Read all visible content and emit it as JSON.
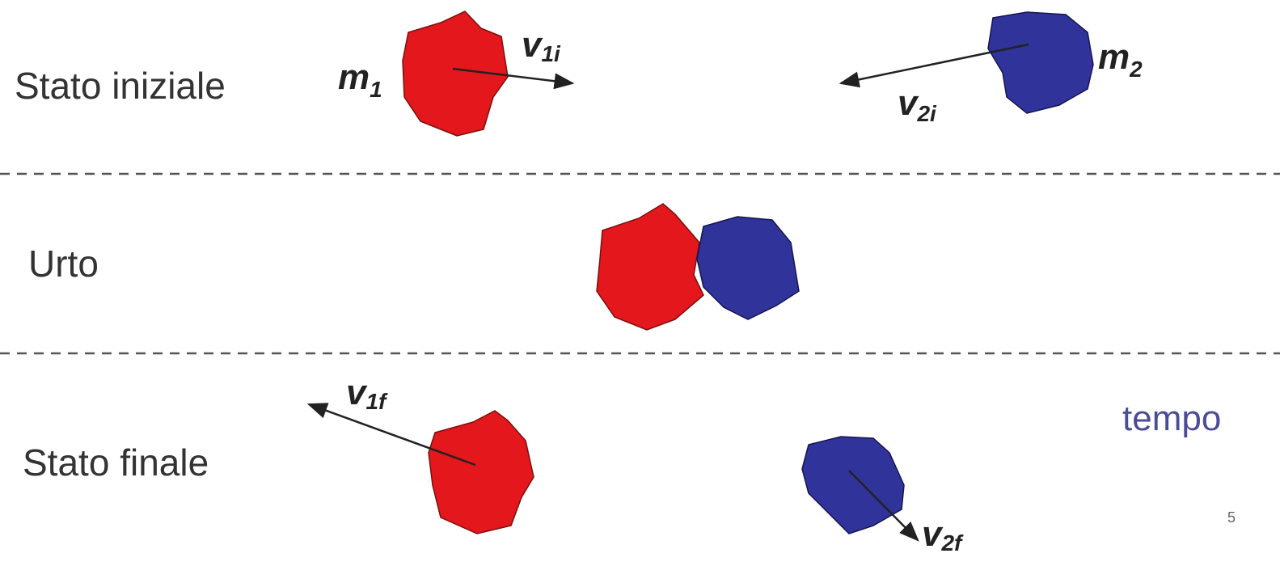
{
  "rows": [
    {
      "label": "Stato iniziale"
    },
    {
      "label": "Urto"
    },
    {
      "label": "Stato finale"
    }
  ],
  "masses": [
    {
      "symbol": "m",
      "subscript": "1"
    },
    {
      "symbol": "m",
      "subscript": "2"
    }
  ],
  "velocities": [
    {
      "symbol": "v",
      "subscript": "1i"
    },
    {
      "symbol": "v",
      "subscript": "2i"
    },
    {
      "symbol": "v",
      "subscript": "1f"
    },
    {
      "symbol": "v",
      "subscript": "2f"
    }
  ],
  "time_label": "tempo",
  "page_number": "5"
}
